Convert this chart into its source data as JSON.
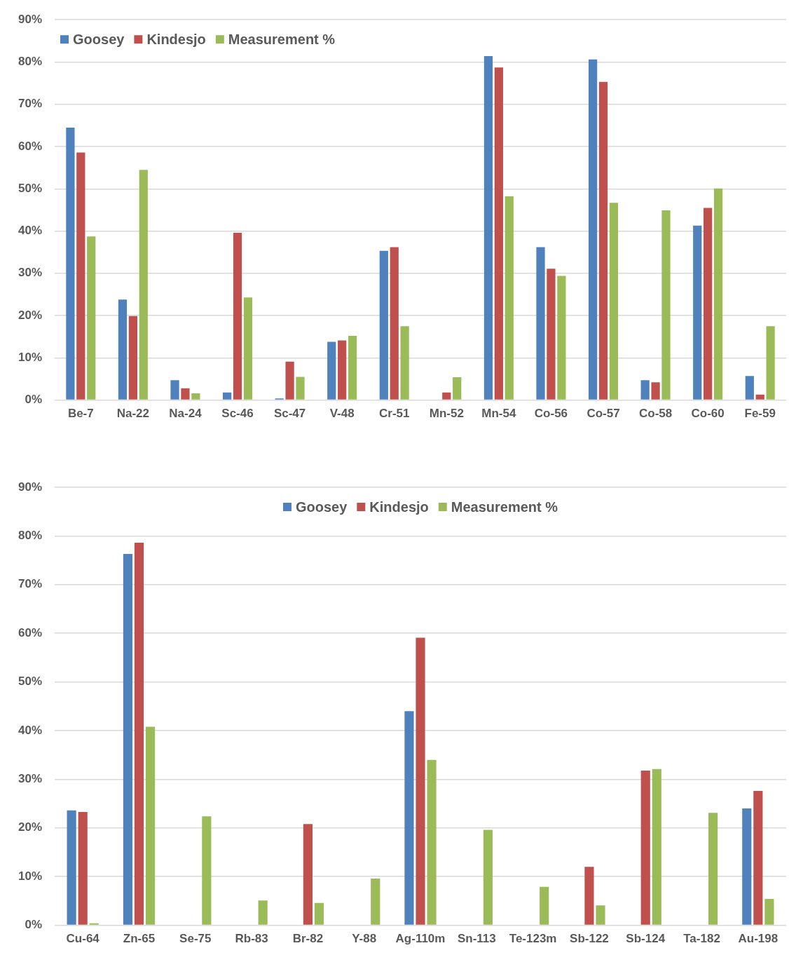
{
  "chart_data": [
    {
      "type": "bar",
      "categories": [
        "Be-7",
        "Na-22",
        "Na-24",
        "Sc-46",
        "Sc-47",
        "V-48",
        "Cr-51",
        "Mn-52",
        "Mn-54",
        "Co-56",
        "Co-57",
        "Co-58",
        "Co-60",
        "Fe-59"
      ],
      "series": [
        {
          "name": "Goosey",
          "color": "#4f81bd",
          "values": [
            64.5,
            23.8,
            4.7,
            1.8,
            0.4,
            13.8,
            35.3,
            null,
            81.4,
            36.2,
            80.6,
            4.7,
            41.3,
            5.7
          ]
        },
        {
          "name": "Kindesjo",
          "color": "#c0504d",
          "values": [
            58.6,
            19.9,
            2.8,
            39.6,
            9.1,
            14.1,
            36.2,
            1.8,
            78.7,
            31.1,
            75.3,
            4.2,
            45.5,
            1.3
          ]
        },
        {
          "name": "Measurement %",
          "color": "#9bbb59",
          "values": [
            38.7,
            54.5,
            1.6,
            24.3,
            5.5,
            15.2,
            17.5,
            5.4,
            48.2,
            29.4,
            46.7,
            44.9,
            50.1,
            17.5
          ]
        }
      ],
      "ylim": [
        0,
        90
      ],
      "yticks": [
        {
          "value": 0,
          "label": "0%"
        },
        {
          "value": 10,
          "label": "10%"
        },
        {
          "value": 20,
          "label": "20%"
        },
        {
          "value": 30,
          "label": "30%"
        },
        {
          "value": 40,
          "label": "40%"
        },
        {
          "value": 50,
          "label": "50%"
        },
        {
          "value": 60,
          "label": "60%"
        },
        {
          "value": 70,
          "label": "70%"
        },
        {
          "value": 80,
          "label": "80%"
        },
        {
          "value": 90,
          "label": "90%"
        }
      ],
      "grid": "y",
      "legend": "top left"
    },
    {
      "type": "bar",
      "categories": [
        "Cu-64",
        "Zn-65",
        "Se-75",
        "Rb-83",
        "Br-82",
        "Y-88",
        "Ag-110m",
        "Sn-113",
        "Te-123m",
        "Sb-122",
        "Sb-124",
        "Ta-182",
        "Au-198"
      ],
      "series": [
        {
          "name": "Goosey",
          "color": "#4f81bd",
          "values": [
            23.6,
            76.3,
            null,
            null,
            null,
            null,
            44.0,
            null,
            null,
            null,
            null,
            null,
            24.0
          ]
        },
        {
          "name": "Kindesjo",
          "color": "#c0504d",
          "values": [
            23.3,
            78.6,
            null,
            null,
            20.8,
            null,
            59.1,
            null,
            null,
            12.0,
            31.8,
            null,
            27.6
          ]
        },
        {
          "name": "Measurement %",
          "color": "#9bbb59",
          "values": [
            0.4,
            40.8,
            22.4,
            5.1,
            4.6,
            9.6,
            34.0,
            19.6,
            7.9,
            4.1,
            32.1,
            23.1,
            5.4
          ]
        }
      ],
      "ylim": [
        0,
        90
      ],
      "yticks": [
        {
          "value": 0,
          "label": "0%"
        },
        {
          "value": 10,
          "label": "10%"
        },
        {
          "value": 20,
          "label": "20%"
        },
        {
          "value": 30,
          "label": "30%"
        },
        {
          "value": 40,
          "label": "40%"
        },
        {
          "value": 50,
          "label": "50%"
        },
        {
          "value": 60,
          "label": "60%"
        },
        {
          "value": 70,
          "label": "70%"
        },
        {
          "value": 80,
          "label": "80%"
        },
        {
          "value": 90,
          "label": "90%"
        }
      ],
      "grid": "y",
      "legend": "top"
    }
  ]
}
